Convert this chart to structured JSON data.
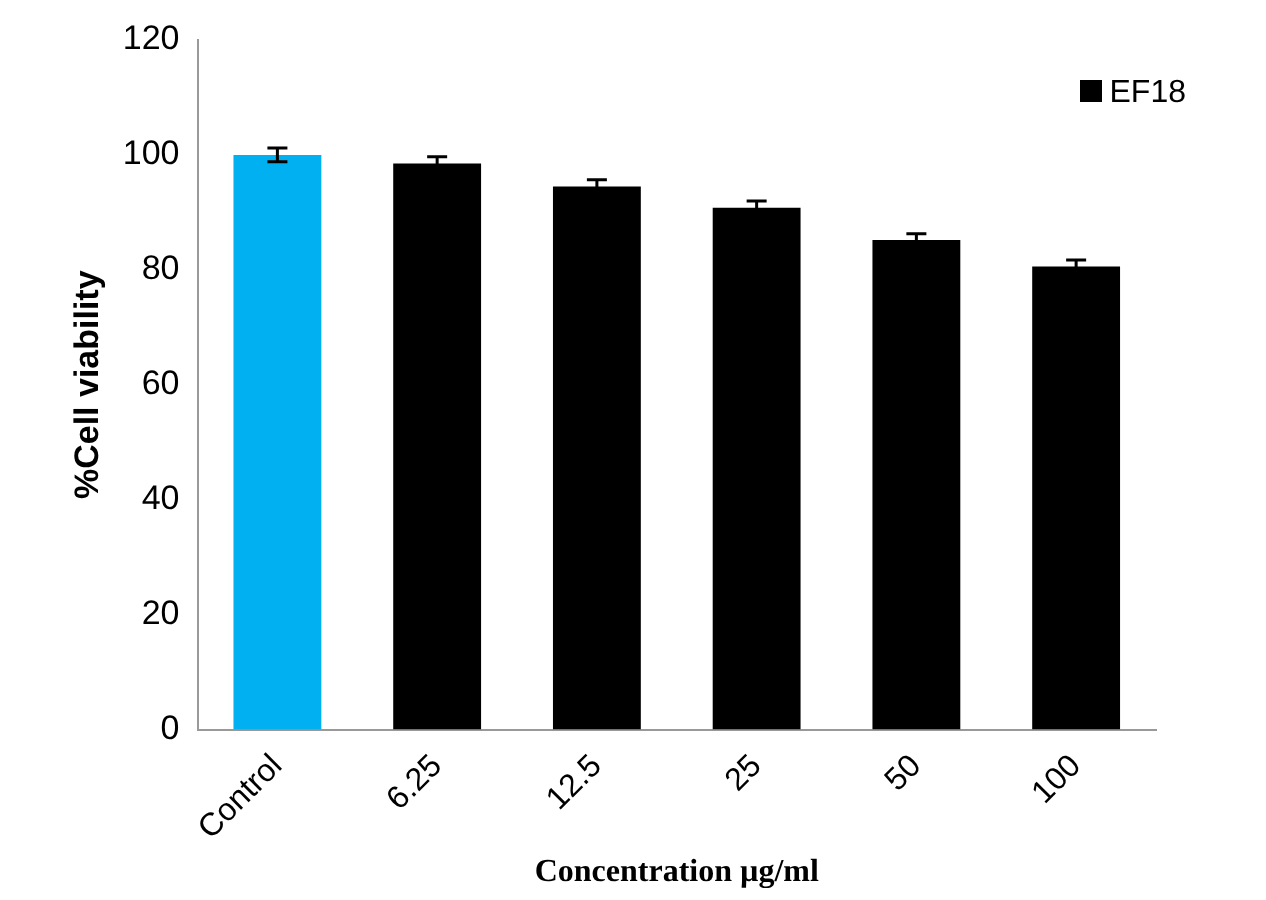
{
  "chart_data": {
    "type": "bar",
    "xlabel": "Concentration µg/ml",
    "ylabel": "%Cell viability",
    "categories": [
      "Control",
      "6.25",
      "12.5",
      "25",
      "50",
      "100"
    ],
    "series": [
      {
        "name": "EF18",
        "color": "#000000",
        "colors": [
          "#00b0f0",
          "#000000",
          "#000000",
          "#000000",
          "#000000",
          "#000000"
        ],
        "values": [
          100,
          98.5,
          94.5,
          90.8,
          85.2,
          80.6
        ],
        "errors": [
          1.2,
          1.2,
          1.2,
          1.2,
          1.1,
          1.1
        ]
      }
    ],
    "ylim": [
      0,
      120
    ],
    "yticks": [
      0,
      20,
      40,
      60,
      80,
      100,
      120
    ],
    "grid": false,
    "legend": "top right"
  }
}
